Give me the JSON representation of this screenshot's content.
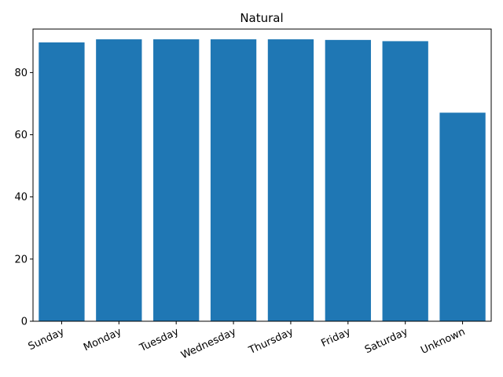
{
  "chart_data": {
    "type": "bar",
    "title": "Natural",
    "xlabel": "",
    "ylabel": "",
    "categories": [
      "Sunday",
      "Monday",
      "Tuesday",
      "Wednesday",
      "Thursday",
      "Friday",
      "Saturday",
      "Unknown"
    ],
    "values": [
      89.7,
      90.7,
      90.7,
      90.7,
      90.7,
      90.5,
      90.1,
      67.1
    ],
    "ylim": [
      0,
      94
    ],
    "yticks": [
      0,
      20,
      40,
      60,
      80
    ],
    "bar_color": "#1f77b4",
    "grid": false,
    "legend": "none"
  }
}
